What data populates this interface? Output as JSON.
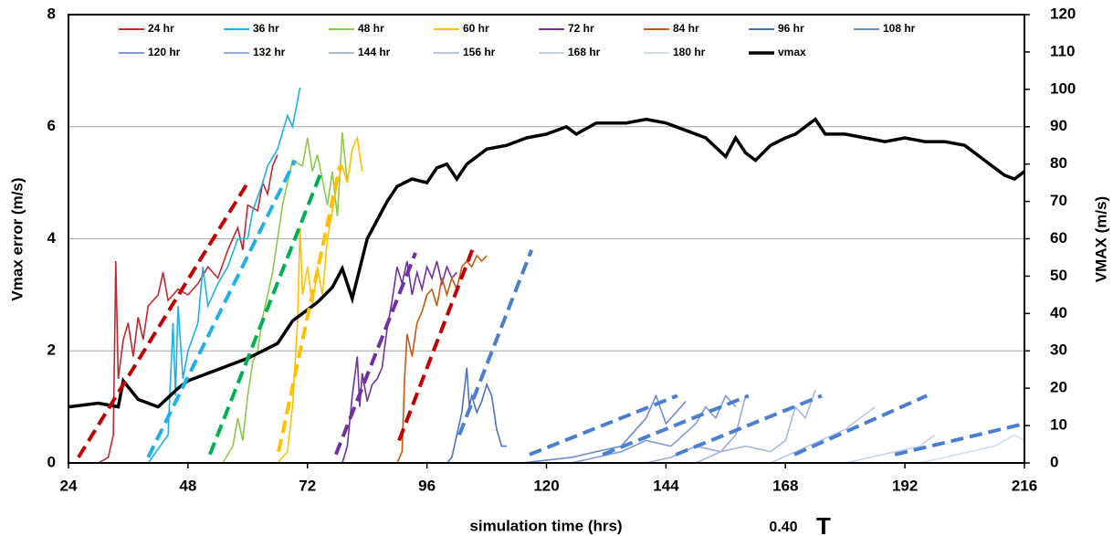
{
  "chart_data": {
    "type": "line",
    "x_label": "simulation time (hrs)",
    "y_label": "Vmax error (m/s)",
    "y2_label": "VMAX (m/s)",
    "xlim": [
      24,
      216
    ],
    "xticks": [
      24,
      48,
      72,
      96,
      120,
      144,
      168,
      192,
      216
    ],
    "ylim": [
      0,
      8
    ],
    "yticks": [
      0,
      2,
      4,
      6,
      8
    ],
    "y2lim": [
      0,
      120
    ],
    "y2ticks": [
      0,
      10,
      20,
      30,
      40,
      50,
      60,
      70,
      80,
      90,
      100,
      110,
      120
    ],
    "grid": true,
    "series": [
      {
        "name": "24 hr",
        "color": "#c0282d",
        "x": [
          30,
          32,
          33,
          33.5,
          34,
          35,
          36,
          37,
          38,
          39,
          40,
          42,
          43,
          44,
          46,
          48,
          50,
          52,
          54,
          56,
          58,
          59,
          60,
          62,
          63,
          64,
          65,
          66
        ],
        "values": [
          0,
          0.1,
          0.5,
          3.6,
          1.5,
          2.2,
          2.5,
          1.9,
          2.6,
          2.2,
          2.8,
          3.0,
          3.4,
          2.9,
          3.1,
          3.0,
          3.2,
          3.5,
          3.3,
          3.8,
          4.2,
          3.8,
          4.6,
          4.5,
          5.0,
          4.8,
          5.3,
          5.5
        ]
      },
      {
        "name": "36 hr",
        "color": "#1fb0e8",
        "x": [
          40,
          44,
          45,
          45.5,
          46,
          47,
          48,
          50,
          51,
          52,
          54,
          56,
          58,
          60,
          61,
          63,
          64,
          66,
          68,
          69,
          70.5
        ],
        "values": [
          0,
          0.5,
          2.5,
          1.2,
          2.8,
          1.5,
          2.0,
          2.5,
          3.5,
          2.8,
          3.2,
          3.5,
          4.0,
          4.0,
          4.5,
          5.0,
          5.3,
          5.6,
          6.2,
          6.0,
          6.7
        ]
      },
      {
        "name": "48 hr",
        "color": "#8cc84b",
        "x": [
          55,
          57,
          58,
          59,
          60,
          61,
          62,
          63,
          64,
          65,
          66,
          67,
          68,
          69,
          71,
          72,
          73,
          74,
          76,
          77,
          78,
          79,
          80,
          81
        ],
        "values": [
          0,
          0.3,
          0.8,
          0.4,
          1.2,
          1.8,
          2.0,
          2.6,
          3.0,
          3.4,
          4.0,
          4.6,
          5.0,
          5.4,
          5.3,
          5.8,
          5.2,
          5.5,
          4.6,
          5.2,
          4.4,
          5.9,
          5.0,
          5.6
        ]
      },
      {
        "name": "60 hr",
        "color": "#ffc000",
        "x": [
          66,
          68,
          69,
          70,
          70.5,
          71,
          72,
          73,
          74,
          75,
          76,
          77,
          78,
          79,
          80,
          81,
          82,
          83
        ],
        "values": [
          0,
          0.2,
          1.0,
          2.5,
          4.2,
          3.0,
          3.5,
          2.8,
          3.5,
          3.0,
          4.0,
          4.5,
          5.0,
          5.3,
          5.0,
          5.6,
          5.8,
          5.2
        ]
      },
      {
        "name": "72 hr",
        "color": "#7030a0",
        "x": [
          76,
          79,
          80,
          81,
          82,
          82.5,
          83,
          84,
          85,
          86,
          87,
          88,
          89,
          90,
          91,
          92,
          93,
          94,
          95,
          96,
          97,
          98,
          99,
          100,
          101,
          102
        ],
        "values": [
          0,
          0,
          0.3,
          1.2,
          1.9,
          1.0,
          1.6,
          1.1,
          1.4,
          1.5,
          1.7,
          2.4,
          2.9,
          3.5,
          3.2,
          3.6,
          3.0,
          3.4,
          3.1,
          3.5,
          3.3,
          3.6,
          3.2,
          3.5,
          3.3,
          3.4
        ]
      },
      {
        "name": "84 hr",
        "color": "#c55a11",
        "x": [
          90,
          91,
          91.5,
          92,
          93,
          94,
          95,
          96,
          97,
          98,
          99,
          100,
          101,
          102,
          103,
          104,
          105,
          106,
          107,
          108
        ],
        "values": [
          0,
          0.2,
          1.5,
          2.3,
          1.9,
          2.5,
          2.7,
          3.0,
          3.1,
          2.8,
          3.3,
          3.0,
          3.3,
          3.1,
          3.5,
          3.6,
          3.5,
          3.7,
          3.6,
          3.7
        ]
      },
      {
        "name": "96 hr",
        "color": "#4a72c0",
        "x": [
          100,
          101,
          102,
          103,
          104,
          104.5,
          105,
          106,
          107,
          108,
          109,
          110,
          111,
          112
        ],
        "values": [
          0,
          0.1,
          0.5,
          0.9,
          1.7,
          1.0,
          1.2,
          0.9,
          1.1,
          1.4,
          1.2,
          0.6,
          0.3,
          0.3
        ]
      },
      {
        "name": "108 hr",
        "color": "#6a8ccc",
        "x": [
          115,
          120,
          125,
          130,
          135,
          138,
          140,
          142,
          144,
          146,
          148
        ],
        "values": [
          0,
          0.05,
          0.1,
          0.2,
          0.3,
          0.6,
          0.8,
          1.2,
          0.7,
          0.9,
          1.1
        ]
      },
      {
        "name": "120 hr",
        "color": "#7f9bd4",
        "x": [
          125,
          130,
          135,
          140,
          145,
          150,
          152,
          154,
          156,
          158
        ],
        "values": [
          0,
          0.1,
          0.2,
          0.4,
          0.3,
          0.7,
          1.0,
          0.8,
          1.2,
          1.0
        ]
      },
      {
        "name": "132 hr",
        "color": "#94abdb",
        "x": [
          140,
          145,
          150,
          155,
          158,
          160
        ],
        "values": [
          0,
          0.1,
          0.3,
          0.2,
          0.5,
          1.2
        ]
      },
      {
        "name": "144 hr",
        "color": "#a5b8e0",
        "x": [
          150,
          155,
          160,
          165,
          168,
          170,
          172,
          174
        ],
        "values": [
          0,
          0.2,
          0.3,
          0.2,
          0.4,
          1.0,
          0.8,
          1.3
        ]
      },
      {
        "name": "156 hr",
        "color": "#b6c6e6",
        "x": [
          165,
          170,
          175,
          180,
          183,
          186
        ],
        "values": [
          0,
          0.2,
          0.4,
          0.6,
          0.8,
          1.0
        ]
      },
      {
        "name": "168 hr",
        "color": "#c5d1ec",
        "x": [
          180,
          185,
          190,
          195,
          198
        ],
        "values": [
          0,
          0.1,
          0.2,
          0.3,
          0.5
        ]
      },
      {
        "name": "180 hr",
        "color": "#d3ddf1",
        "x": [
          195,
          200,
          205,
          210,
          214,
          216
        ],
        "values": [
          0,
          0.1,
          0.2,
          0.3,
          0.5,
          0.4
        ]
      },
      {
        "name": "vmax",
        "color": "#000000",
        "axis": "y2",
        "x": [
          24,
          30,
          34,
          35,
          38,
          42,
          46,
          48,
          52,
          56,
          60,
          63,
          66,
          69,
          71,
          74,
          77,
          79,
          81,
          84,
          86,
          88,
          90,
          93,
          96,
          98,
          100,
          102,
          104,
          108,
          112,
          116,
          120,
          124,
          126,
          130,
          136,
          140,
          144,
          148,
          152,
          156,
          158,
          160,
          162,
          165,
          168,
          170,
          174,
          176,
          180,
          184,
          188,
          192,
          196,
          200,
          204,
          208,
          212,
          214,
          216
        ],
        "values": [
          15,
          16,
          15,
          22,
          17,
          15,
          20,
          22,
          24,
          26,
          28,
          30,
          32,
          38,
          40,
          43,
          47,
          52,
          44,
          60,
          65,
          70,
          74,
          76,
          75,
          79,
          80,
          76,
          80,
          84,
          85,
          87,
          88,
          90,
          88,
          91,
          91,
          92,
          91,
          89,
          87,
          82,
          87,
          83,
          81,
          85,
          87,
          88,
          92,
          88,
          88,
          87,
          86,
          87,
          86,
          86,
          85,
          81,
          77,
          76,
          78
        ]
      }
    ],
    "trend_lines": [
      {
        "color": "#c00000",
        "x": [
          26,
          60
        ],
        "values": [
          0.1,
          5.0
        ]
      },
      {
        "color": "#1fb0e8",
        "x": [
          40,
          69.5
        ],
        "values": [
          0.1,
          5.4
        ]
      },
      {
        "color": "#00b050",
        "x": [
          52.4,
          74.8
        ],
        "values": [
          0.15,
          5.2
        ]
      },
      {
        "color": "#ffc000",
        "x": [
          66.2,
          78.5
        ],
        "values": [
          0.2,
          5.3
        ]
      },
      {
        "color": "#7030a0",
        "x": [
          77.7,
          93.7
        ],
        "values": [
          0.15,
          3.75
        ]
      },
      {
        "color": "#c00000",
        "x": [
          90.4,
          105.1
        ],
        "values": [
          0.4,
          3.8
        ]
      },
      {
        "color": "#4a7fd0",
        "x": [
          102.5,
          117
        ],
        "values": [
          0.5,
          3.8
        ]
      },
      {
        "color": "#4a7fd0",
        "x": [
          116.6,
          146.3
        ],
        "values": [
          0.15,
          1.2
        ]
      },
      {
        "color": "#4a7fd0",
        "x": [
          131.3,
          160.6
        ],
        "values": [
          0.15,
          1.2
        ]
      },
      {
        "color": "#4a7fd0",
        "x": [
          146,
          175.3
        ],
        "values": [
          0.15,
          1.2
        ]
      },
      {
        "color": "#4a7fd0",
        "x": [
          169.8,
          196.4
        ],
        "values": [
          0.15,
          1.2
        ]
      },
      {
        "color": "#4a7fd0",
        "x": [
          190,
          216
        ],
        "values": [
          0.15,
          0.7
        ]
      }
    ],
    "annotations": [
      "0.40",
      "T"
    ]
  }
}
